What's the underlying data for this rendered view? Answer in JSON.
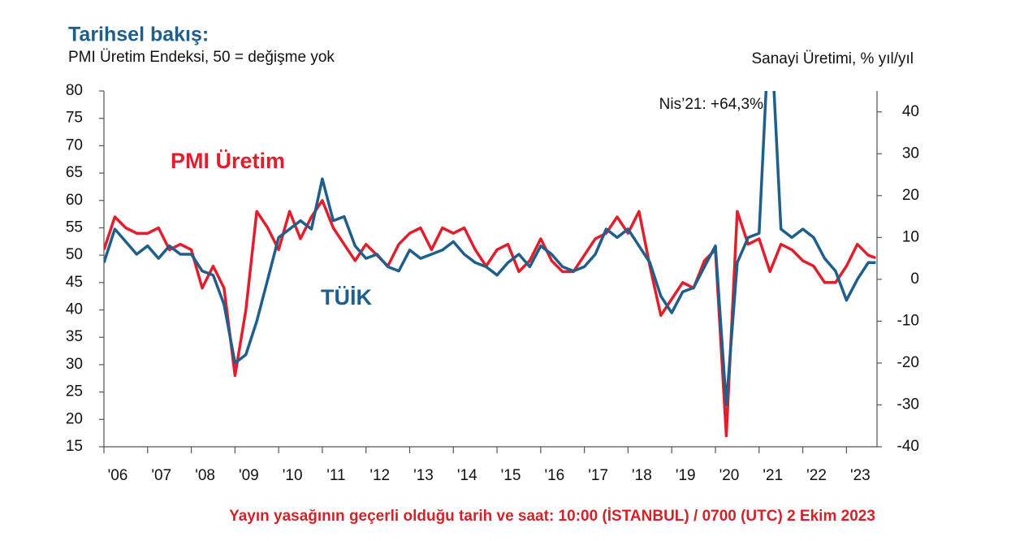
{
  "chart_data": {
    "type": "line",
    "title": "Tarihsel bakış:",
    "subtitle": "PMI Üretim Endeksi, 50 = değişme yok",
    "y2_label": "Sanayi Üretimi, % yıl/yıl",
    "annotation": "Nis’21: +64,3%",
    "x": [
      2006,
      2006.25,
      2006.5,
      2006.75,
      2007,
      2007.25,
      2007.5,
      2007.75,
      2008,
      2008.25,
      2008.5,
      2008.75,
      2009,
      2009.25,
      2009.5,
      2009.75,
      2010,
      2010.25,
      2010.5,
      2010.75,
      2011,
      2011.25,
      2011.5,
      2011.75,
      2012,
      2012.25,
      2012.5,
      2012.75,
      2013,
      2013.25,
      2013.5,
      2013.75,
      2014,
      2014.25,
      2014.5,
      2014.75,
      2015,
      2015.25,
      2015.5,
      2015.75,
      2016,
      2016.25,
      2016.5,
      2016.75,
      2017,
      2017.25,
      2017.5,
      2017.75,
      2018,
      2018.25,
      2018.5,
      2018.75,
      2019,
      2019.25,
      2019.5,
      2019.75,
      2020,
      2020.25,
      2020.5,
      2020.75,
      2021,
      2021.25,
      2021.5,
      2021.75,
      2022,
      2022.25,
      2022.5,
      2022.75,
      2023,
      2023.25,
      2023.5,
      2023.67
    ],
    "xlim": [
      2006,
      2023.7
    ],
    "xticks": [
      {
        "value": 2006,
        "label": "'06"
      },
      {
        "value": 2007,
        "label": "'07"
      },
      {
        "value": 2008,
        "label": "'08"
      },
      {
        "value": 2009,
        "label": "'09"
      },
      {
        "value": 2010,
        "label": "'10"
      },
      {
        "value": 2011,
        "label": "'11"
      },
      {
        "value": 2012,
        "label": "'12"
      },
      {
        "value": 2013,
        "label": "'13"
      },
      {
        "value": 2014,
        "label": "'14"
      },
      {
        "value": 2015,
        "label": "'15"
      },
      {
        "value": 2016,
        "label": "'16"
      },
      {
        "value": 2017,
        "label": "'17"
      },
      {
        "value": 2018,
        "label": "'18"
      },
      {
        "value": 2019,
        "label": "'19"
      },
      {
        "value": 2020,
        "label": "'20"
      },
      {
        "value": 2021,
        "label": "'21"
      },
      {
        "value": 2022,
        "label": "'22"
      },
      {
        "value": 2023,
        "label": "'23"
      }
    ],
    "ylim": [
      15,
      80
    ],
    "yticks": [
      15,
      20,
      25,
      30,
      35,
      40,
      45,
      50,
      55,
      60,
      65,
      70,
      75,
      80
    ],
    "y2lim": [
      -40,
      45
    ],
    "y2ticks": [
      -40,
      -30,
      -20,
      -10,
      0,
      10,
      20,
      30,
      40
    ],
    "series": [
      {
        "name": "PMI Üretim",
        "color": "#e31e2c",
        "values": [
          51,
          57,
          55,
          54,
          54,
          55,
          51,
          52,
          51,
          44,
          48,
          44,
          28,
          40,
          58,
          55,
          51,
          58,
          53,
          57,
          60,
          55,
          52,
          49,
          52,
          50,
          48,
          52,
          54,
          55,
          51,
          55,
          54,
          55,
          51,
          48,
          51,
          52,
          47,
          49,
          53,
          49,
          47,
          47,
          50,
          53,
          54,
          57,
          54,
          58,
          48,
          39,
          42,
          45,
          44,
          49,
          51,
          17,
          58,
          52,
          53,
          47,
          52,
          51,
          49,
          48,
          45,
          45,
          48,
          52,
          50,
          49.5
        ]
      },
      {
        "name": "TÜİK",
        "color": "#1f5f8b",
        "axis": "y2",
        "values": [
          4,
          12,
          9,
          6,
          8,
          5,
          8,
          6,
          6,
          2,
          1,
          -6,
          -20,
          -18,
          -10,
          0,
          10,
          12,
          14,
          12,
          24,
          14,
          15,
          8,
          5,
          6,
          3,
          2,
          7,
          5,
          6,
          7,
          9,
          6,
          4,
          3,
          1,
          4,
          6,
          3,
          8,
          6,
          3,
          2,
          3,
          6,
          12,
          10,
          12,
          8,
          4,
          -4,
          -8,
          -3,
          -2,
          3,
          8,
          -30,
          4,
          10,
          11,
          64.3,
          12,
          10,
          12,
          10,
          5,
          2,
          -5,
          0,
          4,
          4
        ]
      }
    ]
  },
  "footer": "Yayın yasağının geçerli olduğu tarih ve saat: 10:00 (İSTANBUL) / 0700 (UTC) 2 Ekim 2023"
}
